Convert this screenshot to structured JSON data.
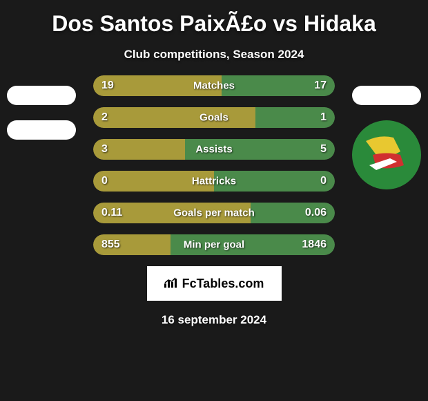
{
  "title": "Dos Santos PaixÃ£o vs Hidaka",
  "subtitle": "Club competitions, Season 2024",
  "footer_brand": "FcTables.com",
  "footer_date": "16 september 2024",
  "player_left_color": "#a89a3a",
  "player_right_color": "#4a8a4a",
  "background_color": "#1a1a1a",
  "row_background": "#2a2a2a",
  "stats": [
    {
      "label": "Matches",
      "left_value": "19",
      "right_value": "17",
      "left_width_pct": 53,
      "right_width_pct": 47
    },
    {
      "label": "Goals",
      "left_value": "2",
      "right_value": "1",
      "left_width_pct": 67,
      "right_width_pct": 33
    },
    {
      "label": "Assists",
      "left_value": "3",
      "right_value": "5",
      "left_width_pct": 38,
      "right_width_pct": 62
    },
    {
      "label": "Hattricks",
      "left_value": "0",
      "right_value": "0",
      "left_width_pct": 50,
      "right_width_pct": 50
    },
    {
      "label": "Goals per match",
      "left_value": "0.11",
      "right_value": "0.06",
      "left_width_pct": 65,
      "right_width_pct": 35
    },
    {
      "label": "Min per goal",
      "left_value": "855",
      "right_value": "1846",
      "left_width_pct": 32,
      "right_width_pct": 68
    }
  ],
  "club_logo_colors": {
    "primary": "#2a8a3a",
    "secondary": "#e8c830",
    "accent": "#d03030"
  }
}
